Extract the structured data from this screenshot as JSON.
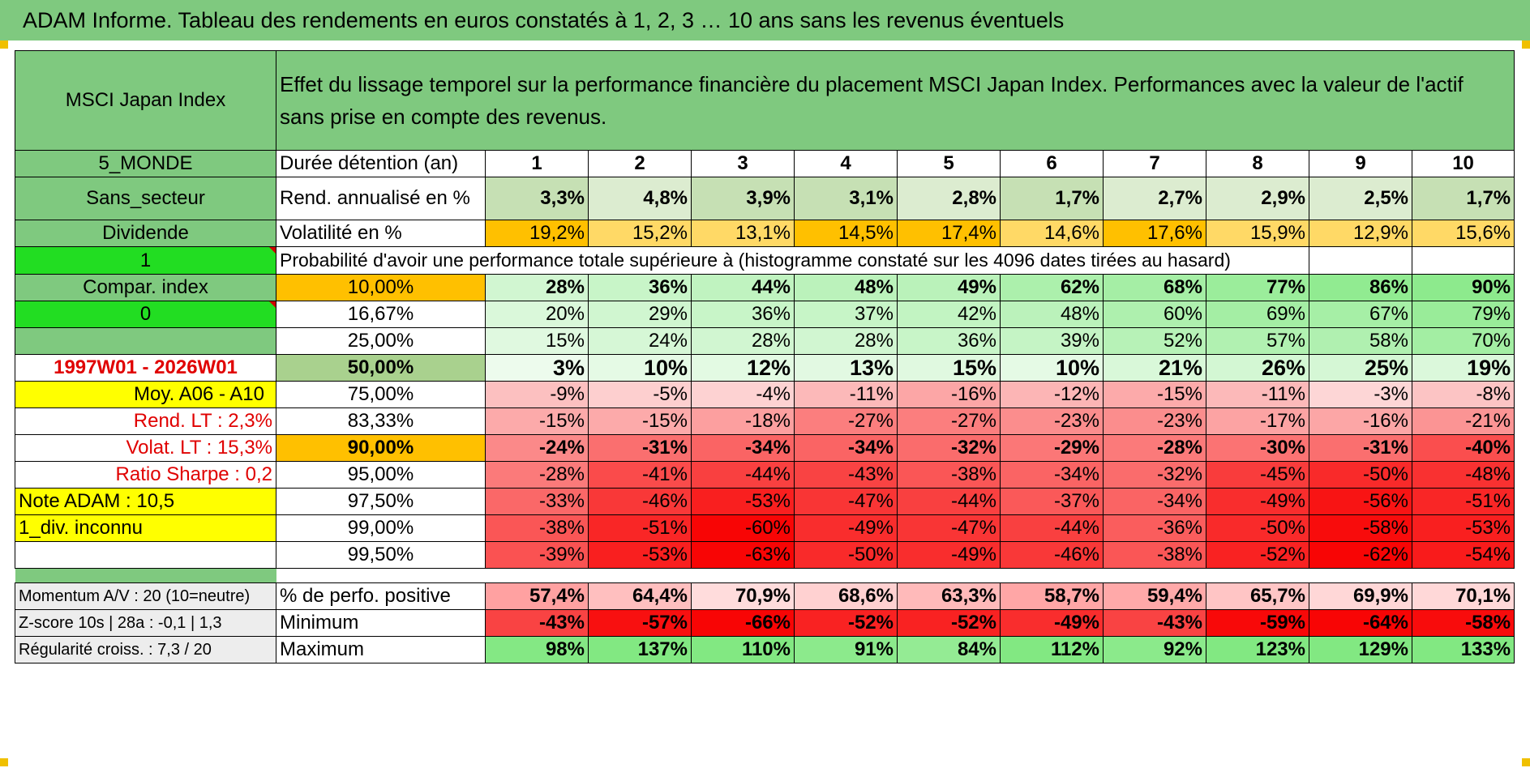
{
  "title": "ADAM Informe. Tableau des rendements en euros constatés à 1, 2, 3 … 10 ans sans les revenus éventuels",
  "header": {
    "index_name": "MSCI Japan Index",
    "description": "Effet du lissage temporel sur la performance financière du placement MSCI Japan Index. Performances avec la valeur de l'actif sans prise en compte des revenus."
  },
  "left": {
    "r1": "5_MONDE",
    "r2": "Sans_secteur",
    "r3": "Dividende",
    "r4": "1",
    "r5": "Compar. index",
    "r6": "0",
    "r7": "",
    "r8": "1997W01 - 2026W01",
    "r9": "Moy. A06 - A10",
    "r10": "Rend. LT :   2,3%",
    "r11": "Volat. LT :   15,3%",
    "r12": "Ratio Sharpe :    0,2",
    "r13": "Note ADAM : 10,5",
    "r14": "1_div. inconnu",
    "r15": ""
  },
  "stats": {
    "holding_label": "Durée détention (an)",
    "years": [
      "1",
      "2",
      "3",
      "4",
      "5",
      "6",
      "7",
      "8",
      "9",
      "10"
    ],
    "return_label": "Rend. annualisé en %",
    "returns": [
      "3,3%",
      "4,8%",
      "3,9%",
      "3,1%",
      "2,8%",
      "1,7%",
      "2,7%",
      "2,9%",
      "2,5%",
      "1,7%"
    ],
    "vol_label": "Volatilité en %",
    "volatility": [
      "19,2%",
      "15,2%",
      "13,1%",
      "14,5%",
      "17,4%",
      "14,6%",
      "17,6%",
      "15,9%",
      "12,9%",
      "15,6%"
    ],
    "prob_title": "Probabilité d'avoir une performance totale supérieure à (histogramme constaté sur les 4096 dates tirées au hasard)"
  },
  "quantiles": [
    {
      "label": "10,00%",
      "values": [
        "28%",
        "36%",
        "44%",
        "48%",
        "49%",
        "62%",
        "68%",
        "77%",
        "86%",
        "90%"
      ]
    },
    {
      "label": "16,67%",
      "values": [
        "20%",
        "29%",
        "36%",
        "37%",
        "42%",
        "48%",
        "60%",
        "69%",
        "67%",
        "79%"
      ]
    },
    {
      "label": "25,00%",
      "values": [
        "15%",
        "24%",
        "28%",
        "28%",
        "36%",
        "39%",
        "52%",
        "57%",
        "58%",
        "70%"
      ]
    },
    {
      "label": "50,00%",
      "values": [
        "3%",
        "10%",
        "12%",
        "13%",
        "15%",
        "10%",
        "21%",
        "26%",
        "25%",
        "19%"
      ]
    },
    {
      "label": "75,00%",
      "values": [
        "-9%",
        "-5%",
        "-4%",
        "-11%",
        "-16%",
        "-12%",
        "-15%",
        "-11%",
        "-3%",
        "-8%"
      ]
    },
    {
      "label": "83,33%",
      "values": [
        "-15%",
        "-15%",
        "-18%",
        "-27%",
        "-27%",
        "-23%",
        "-23%",
        "-17%",
        "-16%",
        "-21%"
      ]
    },
    {
      "label": "90,00%",
      "values": [
        "-24%",
        "-31%",
        "-34%",
        "-34%",
        "-32%",
        "-29%",
        "-28%",
        "-30%",
        "-31%",
        "-40%"
      ]
    },
    {
      "label": "95,00%",
      "values": [
        "-28%",
        "-41%",
        "-44%",
        "-43%",
        "-38%",
        "-34%",
        "-32%",
        "-45%",
        "-50%",
        "-48%"
      ]
    },
    {
      "label": "97,50%",
      "values": [
        "-33%",
        "-46%",
        "-53%",
        "-47%",
        "-44%",
        "-37%",
        "-34%",
        "-49%",
        "-56%",
        "-51%"
      ]
    },
    {
      "label": "99,00%",
      "values": [
        "-38%",
        "-51%",
        "-60%",
        "-49%",
        "-47%",
        "-44%",
        "-36%",
        "-50%",
        "-58%",
        "-53%"
      ]
    },
    {
      "label": "99,50%",
      "values": [
        "-39%",
        "-53%",
        "-63%",
        "-50%",
        "-49%",
        "-46%",
        "-38%",
        "-52%",
        "-62%",
        "-54%"
      ]
    }
  ],
  "bottom": [
    {
      "left": "Momentum A/V : 20 (10=neutre)",
      "label": "% de perfo. positive",
      "values": [
        "57,4%",
        "64,4%",
        "70,9%",
        "68,6%",
        "63,3%",
        "58,7%",
        "59,4%",
        "65,7%",
        "69,9%",
        "70,1%"
      ]
    },
    {
      "left": "Z-score 10s | 28a : -0,1 | 1,3",
      "label": "Minimum",
      "values": [
        "-43%",
        "-57%",
        "-66%",
        "-52%",
        "-52%",
        "-49%",
        "-43%",
        "-59%",
        "-64%",
        "-58%"
      ]
    },
    {
      "left": "Régularité croiss. : 7,3 / 20",
      "label": "Maximum",
      "values": [
        "98%",
        "137%",
        "110%",
        "91%",
        "84%",
        "112%",
        "92%",
        "123%",
        "129%",
        "133%"
      ]
    }
  ],
  "colors": {
    "header_green": "#7fc97f",
    "bright_green": "#22dd22",
    "highlight_yellow": "#ffff00",
    "volatility_orange": "#ffc000",
    "label_red": "#e00000"
  }
}
